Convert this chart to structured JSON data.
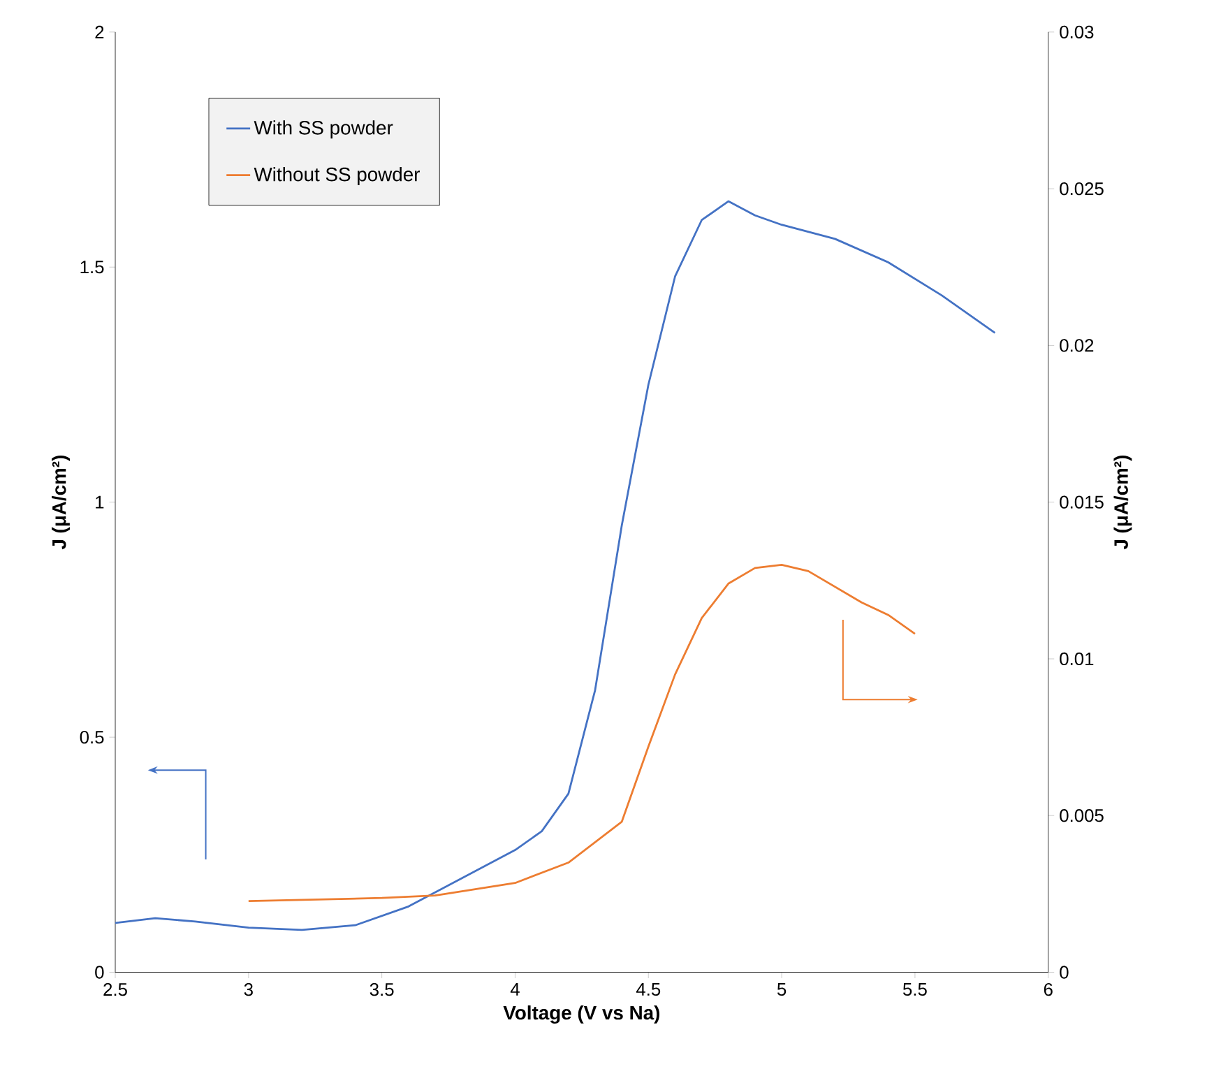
{
  "chart_data": {
    "type": "line",
    "xlabel": "Voltage (V vs Na)",
    "ylabel": "J (μA/cm²)",
    "y2label": "J (μA/cm²)",
    "xlim": [
      2.5,
      6
    ],
    "xticks": [
      2.5,
      3,
      3.5,
      4,
      4.5,
      5,
      5.5,
      6
    ],
    "ylim": [
      0,
      2
    ],
    "yticks": [
      0,
      0.5,
      1,
      1.5,
      2
    ],
    "y2lim": [
      0,
      0.03
    ],
    "y2ticks": [
      0,
      0.005,
      0.01,
      0.015,
      0.02,
      0.025,
      0.03
    ],
    "legend": "top left",
    "grid": false,
    "marker": "none",
    "line_style": "solid",
    "series": [
      {
        "name": "With SS powder",
        "color": "#4472c4",
        "x": [
          2.5,
          2.65,
          2.8,
          3.0,
          3.2,
          3.4,
          3.6,
          3.8,
          4.0,
          4.1,
          4.2,
          4.3,
          4.4,
          4.5,
          4.6,
          4.7,
          4.8,
          4.9,
          5.0,
          5.2,
          5.4,
          5.6,
          5.8
        ],
        "values": [
          0.105,
          0.115,
          0.108,
          0.095,
          0.09,
          0.1,
          0.14,
          0.2,
          0.26,
          0.3,
          0.38,
          0.6,
          0.95,
          1.25,
          1.48,
          1.6,
          1.64,
          1.61,
          1.59,
          1.56,
          1.51,
          1.44,
          1.36
        ]
      },
      {
        "name": "Without SS powder",
        "color": "#ed7d31",
        "axis": "y2",
        "x": [
          3.0,
          3.5,
          3.7,
          4.0,
          4.2,
          4.4,
          4.5,
          4.6,
          4.7,
          4.8,
          4.9,
          5.0,
          5.1,
          5.2,
          5.3,
          5.4,
          5.5
        ],
        "values": [
          0.00227,
          0.00237,
          0.00245,
          0.00285,
          0.0035,
          0.0048,
          0.0072,
          0.0095,
          0.0113,
          0.0124,
          0.0129,
          0.013,
          0.0128,
          0.0123,
          0.0118,
          0.0114,
          0.0108
        ]
      }
    ]
  }
}
